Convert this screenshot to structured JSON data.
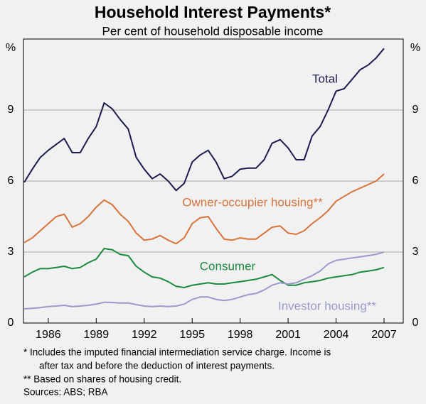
{
  "chart_data": {
    "type": "line",
    "title": "Household Interest Payments*",
    "subtitle": "Per cent of household disposable income",
    "y_unit": "%",
    "x": [
      1984.5,
      1985,
      1985.5,
      1986,
      1986.5,
      1987,
      1987.5,
      1988,
      1988.5,
      1989,
      1989.5,
      1990,
      1990.5,
      1991,
      1991.5,
      1992,
      1992.5,
      1993,
      1993.5,
      1994,
      1994.5,
      1995,
      1995.5,
      1996,
      1996.5,
      1997,
      1997.5,
      1998,
      1998.5,
      1999,
      1999.5,
      2000,
      2000.5,
      2001,
      2001.5,
      2002,
      2002.5,
      2003,
      2003.5,
      2004,
      2004.5,
      2005,
      2005.5,
      2006,
      2006.5,
      2007
    ],
    "series": [
      {
        "name": "Total",
        "color": "#1c1c50",
        "values": [
          5.95,
          6.5,
          7.0,
          7.3,
          7.55,
          7.8,
          7.2,
          7.2,
          7.8,
          8.3,
          9.3,
          9.05,
          8.6,
          8.2,
          7.0,
          6.5,
          6.1,
          6.3,
          6.0,
          5.6,
          5.9,
          6.8,
          7.1,
          7.3,
          6.8,
          6.1,
          6.2,
          6.5,
          6.55,
          6.55,
          6.9,
          7.6,
          7.75,
          7.4,
          6.9,
          6.9,
          7.9,
          8.3,
          9.0,
          9.8,
          9.9,
          10.3,
          10.7,
          10.9,
          11.2,
          11.6
        ]
      },
      {
        "name": "Owner-occupier housing**",
        "color": "#d8733a",
        "values": [
          3.4,
          3.6,
          3.9,
          4.2,
          4.5,
          4.6,
          4.05,
          4.2,
          4.5,
          4.9,
          5.2,
          5.0,
          4.6,
          4.3,
          3.8,
          3.5,
          3.55,
          3.7,
          3.5,
          3.35,
          3.6,
          4.2,
          4.45,
          4.5,
          4.0,
          3.55,
          3.5,
          3.6,
          3.55,
          3.55,
          3.8,
          4.05,
          4.1,
          3.8,
          3.75,
          3.9,
          4.2,
          4.45,
          4.75,
          5.15,
          5.35,
          5.55,
          5.7,
          5.85,
          6.0,
          6.3
        ]
      },
      {
        "name": "Consumer",
        "color": "#1a8a3e",
        "values": [
          1.95,
          2.15,
          2.3,
          2.3,
          2.35,
          2.4,
          2.3,
          2.35,
          2.55,
          2.7,
          3.15,
          3.1,
          2.9,
          2.85,
          2.4,
          2.15,
          1.95,
          1.9,
          1.75,
          1.55,
          1.5,
          1.6,
          1.65,
          1.7,
          1.65,
          1.65,
          1.7,
          1.75,
          1.8,
          1.85,
          1.95,
          2.05,
          1.8,
          1.6,
          1.6,
          1.7,
          1.75,
          1.8,
          1.9,
          1.95,
          2.0,
          2.05,
          2.15,
          2.2,
          2.25,
          2.35
        ]
      },
      {
        "name": "Investor housing**",
        "color": "#9a9acc",
        "values": [
          0.6,
          0.62,
          0.65,
          0.7,
          0.72,
          0.75,
          0.7,
          0.72,
          0.75,
          0.8,
          0.88,
          0.87,
          0.85,
          0.85,
          0.78,
          0.72,
          0.7,
          0.72,
          0.7,
          0.72,
          0.8,
          1.0,
          1.1,
          1.1,
          1.0,
          0.95,
          1.0,
          1.1,
          1.2,
          1.25,
          1.4,
          1.6,
          1.7,
          1.65,
          1.7,
          1.85,
          2.0,
          2.2,
          2.5,
          2.65,
          2.7,
          2.75,
          2.8,
          2.85,
          2.9,
          3.0
        ]
      }
    ],
    "xlim": [
      1984.45,
      2008.2
    ],
    "xticks": [
      1986,
      1989,
      1992,
      1995,
      1998,
      2001,
      2004,
      2007
    ],
    "ylim": [
      0,
      12
    ],
    "yticks": [
      0,
      3,
      6,
      9
    ],
    "grid": true,
    "notes": [
      "*   Includes the imputed financial intermediation service charge. Income is",
      "after tax and before the deduction of interest payments.",
      "** Based on shares of housing credit.",
      "Sources: ABS; RBA"
    ]
  }
}
